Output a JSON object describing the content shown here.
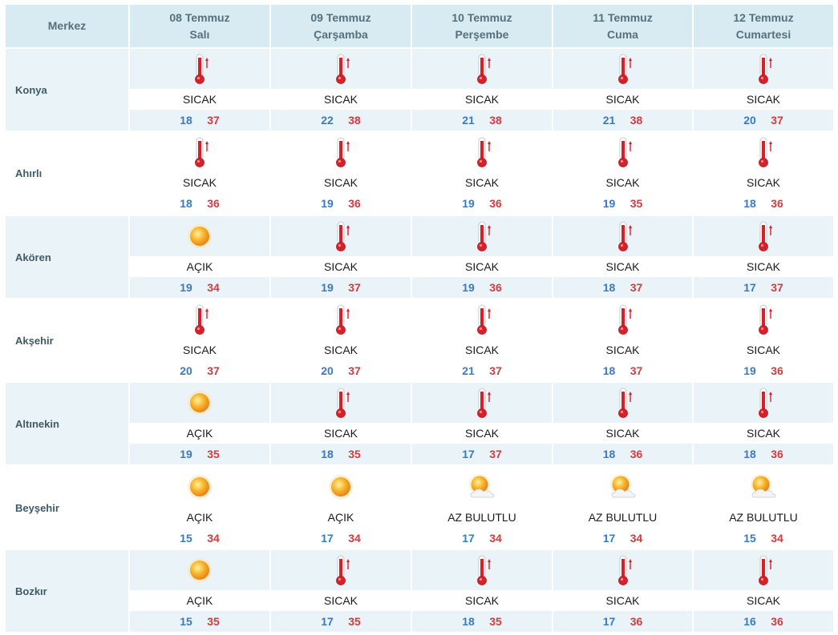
{
  "header": {
    "center_label": "Merkez",
    "days": [
      {
        "date": "08 Temmuz",
        "weekday": "Salı"
      },
      {
        "date": "09 Temmuz",
        "weekday": "Çarşamba"
      },
      {
        "date": "10 Temmuz",
        "weekday": "Perşembe"
      },
      {
        "date": "11 Temmuz",
        "weekday": "Cuma"
      },
      {
        "date": "12 Temmuz",
        "weekday": "Cumartesi"
      }
    ]
  },
  "colors": {
    "header_bg": "#d9ebf2",
    "row_bg": "#eaf4f8",
    "min_temp": "#3a7ac0",
    "max_temp": "#d43a3e"
  },
  "rows": [
    {
      "name": "Konya",
      "shaded": true,
      "forecasts": [
        {
          "icon": "thermometer-icon",
          "condition": "SICAK",
          "min": "18",
          "max": "37"
        },
        {
          "icon": "thermometer-icon",
          "condition": "SICAK",
          "min": "22",
          "max": "38"
        },
        {
          "icon": "thermometer-icon",
          "condition": "SICAK",
          "min": "21",
          "max": "38"
        },
        {
          "icon": "thermometer-icon",
          "condition": "SICAK",
          "min": "21",
          "max": "38"
        },
        {
          "icon": "thermometer-icon",
          "condition": "SICAK",
          "min": "20",
          "max": "37"
        }
      ]
    },
    {
      "name": "Ahırlı",
      "shaded": false,
      "forecasts": [
        {
          "icon": "thermometer-icon",
          "condition": "SICAK",
          "min": "18",
          "max": "36"
        },
        {
          "icon": "thermometer-icon",
          "condition": "SICAK",
          "min": "19",
          "max": "36"
        },
        {
          "icon": "thermometer-icon",
          "condition": "SICAK",
          "min": "19",
          "max": "36"
        },
        {
          "icon": "thermometer-icon",
          "condition": "SICAK",
          "min": "19",
          "max": "35"
        },
        {
          "icon": "thermometer-icon",
          "condition": "SICAK",
          "min": "18",
          "max": "36"
        }
      ]
    },
    {
      "name": "Akören",
      "shaded": true,
      "forecasts": [
        {
          "icon": "sun-icon",
          "condition": "AÇIK",
          "min": "19",
          "max": "34"
        },
        {
          "icon": "thermometer-icon",
          "condition": "SICAK",
          "min": "19",
          "max": "37"
        },
        {
          "icon": "thermometer-icon",
          "condition": "SICAK",
          "min": "19",
          "max": "36"
        },
        {
          "icon": "thermometer-icon",
          "condition": "SICAK",
          "min": "18",
          "max": "37"
        },
        {
          "icon": "thermometer-icon",
          "condition": "SICAK",
          "min": "17",
          "max": "37"
        }
      ]
    },
    {
      "name": "Akşehir",
      "shaded": false,
      "forecasts": [
        {
          "icon": "thermometer-icon",
          "condition": "SICAK",
          "min": "20",
          "max": "37"
        },
        {
          "icon": "thermometer-icon",
          "condition": "SICAK",
          "min": "20",
          "max": "37"
        },
        {
          "icon": "thermometer-icon",
          "condition": "SICAK",
          "min": "21",
          "max": "37"
        },
        {
          "icon": "thermometer-icon",
          "condition": "SICAK",
          "min": "18",
          "max": "37"
        },
        {
          "icon": "thermometer-icon",
          "condition": "SICAK",
          "min": "19",
          "max": "36"
        }
      ]
    },
    {
      "name": "Altınekin",
      "shaded": true,
      "forecasts": [
        {
          "icon": "sun-icon",
          "condition": "AÇIK",
          "min": "19",
          "max": "35"
        },
        {
          "icon": "thermometer-icon",
          "condition": "SICAK",
          "min": "18",
          "max": "35"
        },
        {
          "icon": "thermometer-icon",
          "condition": "SICAK",
          "min": "17",
          "max": "37"
        },
        {
          "icon": "thermometer-icon",
          "condition": "SICAK",
          "min": "18",
          "max": "36"
        },
        {
          "icon": "thermometer-icon",
          "condition": "SICAK",
          "min": "18",
          "max": "36"
        }
      ]
    },
    {
      "name": "Beyşehir",
      "shaded": false,
      "forecasts": [
        {
          "icon": "sun-icon",
          "condition": "AÇIK",
          "min": "15",
          "max": "34"
        },
        {
          "icon": "sun-icon",
          "condition": "AÇIK",
          "min": "17",
          "max": "34"
        },
        {
          "icon": "partly-cloudy-icon",
          "condition": "AZ BULUTLU",
          "min": "17",
          "max": "34"
        },
        {
          "icon": "partly-cloudy-icon",
          "condition": "AZ BULUTLU",
          "min": "17",
          "max": "34"
        },
        {
          "icon": "partly-cloudy-icon",
          "condition": "AZ BULUTLU",
          "min": "15",
          "max": "34"
        }
      ]
    },
    {
      "name": "Bozkır",
      "shaded": true,
      "forecasts": [
        {
          "icon": "sun-icon",
          "condition": "AÇIK",
          "min": "15",
          "max": "35"
        },
        {
          "icon": "thermometer-icon",
          "condition": "SICAK",
          "min": "17",
          "max": "35"
        },
        {
          "icon": "thermometer-icon",
          "condition": "SICAK",
          "min": "18",
          "max": "35"
        },
        {
          "icon": "thermometer-icon",
          "condition": "SICAK",
          "min": "17",
          "max": "36"
        },
        {
          "icon": "thermometer-icon",
          "condition": "SICAK",
          "min": "16",
          "max": "36"
        }
      ]
    }
  ]
}
